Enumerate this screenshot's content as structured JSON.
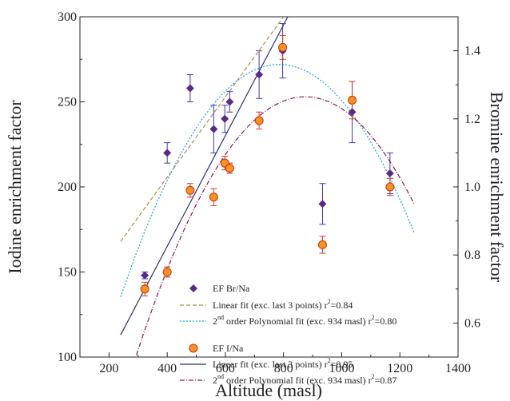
{
  "chart_data": {
    "type": "scatter",
    "xlabel": "Altitude (masl)",
    "ylabel_left": "Iodine enrichment factor",
    "ylabel_right": "Bromine enrichment factor",
    "xlim": [
      100,
      1400
    ],
    "ylim_left": [
      100,
      300
    ],
    "ylim_right": [
      0.5,
      1.5
    ],
    "x_ticks": [
      200,
      400,
      600,
      800,
      1000,
      1200,
      1400
    ],
    "y_left_ticks": [
      100,
      150,
      200,
      250,
      300
    ],
    "y_right_ticks": [
      0.6,
      0.8,
      1.0,
      1.2,
      1.4
    ],
    "x_tick_labels": [
      "200",
      "400",
      "600",
      "800",
      "1000",
      "1200",
      "1400"
    ],
    "y_left_tick_labels": [
      "100",
      "150",
      "200",
      "250",
      "300"
    ],
    "y_right_tick_labels": [
      "0.6",
      "0.8",
      "1.0",
      "1.2",
      "1.4"
    ],
    "grid": false,
    "legend_placement": "lower-center",
    "series": [
      {
        "name": "EF Br/Na",
        "axis": "right",
        "marker": "diamond",
        "color": "#5b2a86",
        "err_color": "#3a3aa8",
        "points": [
          {
            "x": 323,
            "y": 0.74,
            "err": 0.01
          },
          {
            "x": 400,
            "y": 1.1,
            "err": 0.03
          },
          {
            "x": 479,
            "y": 1.29,
            "err": 0.04
          },
          {
            "x": 560,
            "y": 1.17,
            "err": 0.07
          },
          {
            "x": 598,
            "y": 1.2,
            "err": 0.04
          },
          {
            "x": 615,
            "y": 1.25,
            "err": 0.03
          },
          {
            "x": 716,
            "y": 1.33,
            "err": 0.07
          },
          {
            "x": 797,
            "y": 1.4,
            "err": 0.08
          },
          {
            "x": 934,
            "y": 0.95,
            "err": 0.06
          },
          {
            "x": 1036,
            "y": 1.22,
            "err": 0.09
          },
          {
            "x": 1166,
            "y": 1.04,
            "err": 0.06
          }
        ]
      },
      {
        "name": "EF I/Na",
        "axis": "left",
        "marker": "circle",
        "color": "#f7941d",
        "edge_color": "#c0301e",
        "err_color": "#d83a2a",
        "points": [
          {
            "x": 323,
            "y": 140,
            "err": 4
          },
          {
            "x": 400,
            "y": 150,
            "err": 3
          },
          {
            "x": 479,
            "y": 198,
            "err": 4
          },
          {
            "x": 560,
            "y": 194,
            "err": 5
          },
          {
            "x": 598,
            "y": 214,
            "err": 4
          },
          {
            "x": 615,
            "y": 211,
            "err": 3
          },
          {
            "x": 716,
            "y": 239,
            "err": 5
          },
          {
            "x": 797,
            "y": 282,
            "err": 7
          },
          {
            "x": 934,
            "y": 166,
            "err": 5
          },
          {
            "x": 1036,
            "y": 251,
            "err": 11
          },
          {
            "x": 1166,
            "y": 200,
            "err": 5
          }
        ]
      }
    ],
    "fits": [
      {
        "name": "Linear fit (exc. last 3 points)",
        "r2": "0.84",
        "axis": "right",
        "style": "dashed",
        "color": "#b08a4a",
        "kind": "linear",
        "x_range": [
          240,
          800
        ],
        "points": [
          [
            240,
            0.84
          ],
          [
            800,
            1.5
          ]
        ]
      },
      {
        "name": "2nd order Polynomial fit (exc. 934 masl)",
        "r2": "0.80",
        "axis": "right",
        "style": "dotted",
        "color": "#1aa3d6",
        "kind": "poly2",
        "x_range": [
          240,
          1250
        ],
        "vertex_x": 785,
        "vertex_y": 1.36,
        "a": -2.3e-06
      },
      {
        "name": "Linear fit (exc. last 3 points)",
        "r2": "0.95",
        "axis": "left",
        "style": "solid",
        "color": "#2e2e7a",
        "kind": "linear",
        "x_range": [
          240,
          830
        ],
        "points": [
          [
            240,
            113
          ],
          [
            830,
            305
          ]
        ]
      },
      {
        "name": "2nd order Polynomial fit (exc. 934 masl)",
        "r2": "0.87",
        "axis": "left",
        "style": "dashdot",
        "color": "#8a1a55",
        "kind": "poly2",
        "x_range": [
          240,
          1250
        ],
        "vertex_x": 875,
        "vertex_y": 253,
        "a": -0.00045
      }
    ],
    "legend": {
      "br_label": "EF Br/Na",
      "br_linear_label": "Linear fit (exc. last 3 points) r",
      "br_linear_r2": "=0.84",
      "br_poly_pre": "2",
      "br_poly_label": " order Polynomial fit (exc. 934 masl) r",
      "br_poly_r2": "=0.80",
      "i_label": "EF I/Na",
      "i_linear_label": "Linear fit (exc. last 3 points) r",
      "i_linear_r2": "=0.95",
      "i_poly_pre": "2",
      "i_poly_label": " order Polynomial fit (exc. 934 masl) r",
      "i_poly_r2": "=0.87",
      "sup_nd": "nd",
      "sup_2": "2"
    }
  }
}
